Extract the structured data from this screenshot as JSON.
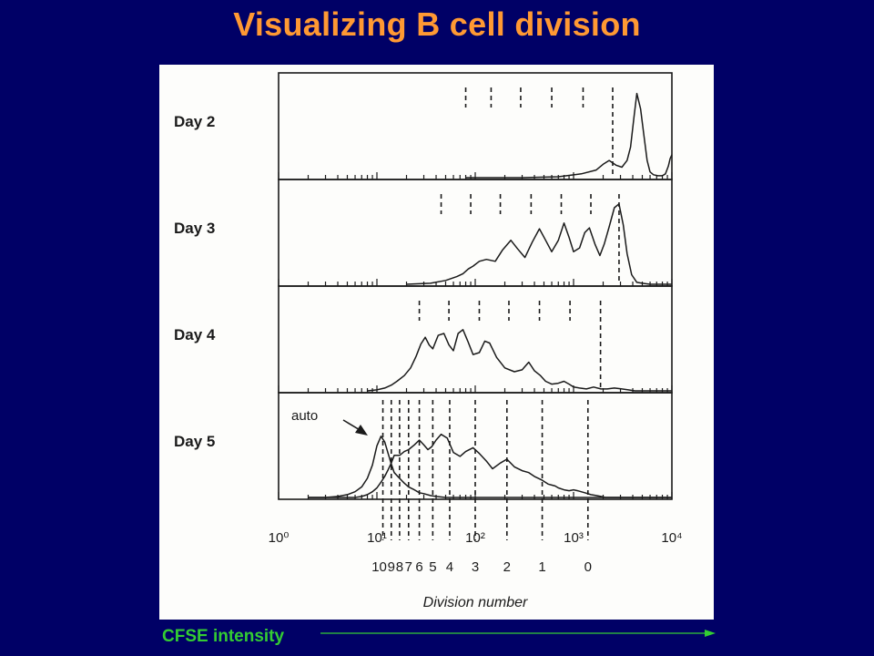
{
  "slide": {
    "title": "Visualizing B cell division",
    "axis_caption": "CFSE intensity",
    "colors": {
      "background": "#000066",
      "title": "#ff9933",
      "caption": "#33cc33",
      "arrow": "#33cc33"
    }
  },
  "chart_data": {
    "type": "line",
    "title": "",
    "xlabel": "Division number",
    "ylabel": "",
    "x_scale": "log",
    "xlim": [
      1,
      10000
    ],
    "x_ticks": [
      {
        "value": 1,
        "label": "10⁰"
      },
      {
        "value": 10,
        "label": "10¹"
      },
      {
        "value": 100,
        "label": "10²"
      },
      {
        "value": 1000,
        "label": "10³"
      },
      {
        "value": 10000,
        "label": "10⁴"
      }
    ],
    "division_labels": [
      "10",
      "9",
      "8",
      "7",
      "6",
      "5",
      "4",
      "3",
      "2",
      "1",
      "0"
    ],
    "division_positions": [
      11.5,
      14,
      17,
      21,
      27,
      37,
      55,
      100,
      210,
      480,
      1400
    ],
    "panels": [
      {
        "label": "Day 2",
        "division_markers": [
          80,
          145,
          290,
          600,
          1250,
          2500
        ],
        "series": [
          {
            "x": [
              80,
              300,
              700,
              1200,
              1700,
              2000,
              2300,
              2700,
              3100,
              3500,
              3800,
              4100,
              4400,
              4800,
              5200,
              5600,
              6000,
              6500,
              7200,
              8000,
              8600,
              9200,
              9600,
              10000
            ],
            "y": [
              0,
              0,
              0.01,
              0.04,
              0.08,
              0.14,
              0.18,
              0.13,
              0.11,
              0.18,
              0.32,
              0.62,
              0.88,
              0.72,
              0.44,
              0.18,
              0.06,
              0.03,
              0.02,
              0.02,
              0.04,
              0.12,
              0.2,
              0.24
            ]
          }
        ]
      },
      {
        "label": "Day 3",
        "division_markers": [
          45,
          90,
          180,
          370,
          750,
          1500,
          2900
        ],
        "series": [
          {
            "x": [
              20,
              35,
              50,
              65,
              75,
              85,
              95,
              110,
              130,
              160,
              190,
              230,
              270,
              320,
              380,
              450,
              520,
              600,
              700,
              800,
              900,
              1000,
              1150,
              1300,
              1450,
              1650,
              1850,
              2050,
              2300,
              2600,
              2900,
              3200,
              3500,
              3900,
              4400,
              5000,
              6000,
              8000,
              10000
            ],
            "y": [
              0,
              0.01,
              0.04,
              0.08,
              0.11,
              0.16,
              0.19,
              0.24,
              0.26,
              0.24,
              0.36,
              0.46,
              0.37,
              0.28,
              0.44,
              0.58,
              0.46,
              0.34,
              0.46,
              0.64,
              0.49,
              0.34,
              0.38,
              0.54,
              0.59,
              0.42,
              0.3,
              0.42,
              0.6,
              0.8,
              0.84,
              0.62,
              0.32,
              0.1,
              0.02,
              0.01,
              0,
              0,
              0
            ]
          }
        ]
      },
      {
        "label": "Day 4",
        "division_markers": [
          27,
          54,
          110,
          220,
          450,
          920,
          1880
        ],
        "series": [
          {
            "x": [
              8,
              10,
              12,
              14,
              16,
              19,
              22,
              25,
              28,
              31,
              34,
              37,
              42,
              48,
              54,
              60,
              67,
              75,
              84,
              95,
              110,
              125,
              140,
              165,
              200,
              250,
              300,
              350,
              400,
              460,
              520,
              600,
              700,
              800,
              900,
              1000,
              1150,
              1350,
              1600,
              1900,
              2200,
              2600,
              3100,
              3600,
              4200,
              5200,
              7000,
              10000
            ],
            "y": [
              0,
              0.01,
              0.03,
              0.06,
              0.1,
              0.16,
              0.24,
              0.36,
              0.49,
              0.56,
              0.48,
              0.44,
              0.58,
              0.6,
              0.48,
              0.42,
              0.6,
              0.64,
              0.52,
              0.38,
              0.4,
              0.52,
              0.5,
              0.35,
              0.24,
              0.2,
              0.22,
              0.3,
              0.21,
              0.16,
              0.1,
              0.07,
              0.08,
              0.1,
              0.07,
              0.04,
              0.03,
              0.02,
              0.04,
              0.02,
              0.02,
              0.03,
              0.02,
              0.01,
              0,
              0,
              0,
              0
            ]
          }
        ]
      },
      {
        "label": "Day 5",
        "division_markers": [
          11.5,
          14,
          17,
          21,
          27,
          37,
          55,
          100,
          210,
          480,
          1400
        ],
        "annotation": "auto",
        "series": [
          {
            "name": "",
            "x": [
              2,
              3,
              4,
              5,
              6,
              7,
              8,
              9,
              10,
              11,
              12,
              13,
              14,
              15,
              17,
              19,
              21,
              24,
              27,
              30,
              33,
              36,
              40,
              45,
              52,
              60,
              70,
              80,
              95,
              110,
              130,
              150,
              180,
              210,
              250,
              300,
              350,
              400,
              480,
              550,
              600,
              650,
              700,
              800,
              900,
              1000,
              1100,
              1300,
              1500,
              1700,
              1900,
              2100,
              2300,
              2600,
              3000,
              3500,
              4000,
              5000,
              7000,
              10000
            ],
            "y": [
              0,
              0,
              0,
              0,
              0,
              0.01,
              0.03,
              0.06,
              0.1,
              0.16,
              0.22,
              0.29,
              0.36,
              0.44,
              0.44,
              0.48,
              0.5,
              0.55,
              0.6,
              0.55,
              0.5,
              0.53,
              0.6,
              0.66,
              0.62,
              0.47,
              0.43,
              0.48,
              0.52,
              0.46,
              0.38,
              0.3,
              0.36,
              0.4,
              0.32,
              0.28,
              0.26,
              0.22,
              0.18,
              0.14,
              0.13,
              0.12,
              0.1,
              0.08,
              0.07,
              0.08,
              0.07,
              0.05,
              0.03,
              0.02,
              0.01,
              0,
              0,
              0,
              0,
              0,
              0,
              0,
              0,
              0
            ]
          },
          {
            "name": "auto",
            "x": [
              2,
              3,
              4,
              5,
              6,
              7,
              8,
              9,
              10,
              11,
              12,
              13,
              14,
              15,
              17,
              19,
              21,
              24,
              27,
              30,
              35,
              40,
              50,
              60,
              75,
              100,
              200,
              500,
              1000,
              5000,
              10000
            ],
            "y": [
              0,
              0,
              0.01,
              0.03,
              0.06,
              0.11,
              0.2,
              0.34,
              0.54,
              0.64,
              0.58,
              0.46,
              0.35,
              0.26,
              0.2,
              0.15,
              0.11,
              0.08,
              0.05,
              0.04,
              0.02,
              0.01,
              0,
              0,
              0,
              0,
              0,
              0,
              0,
              0,
              0
            ]
          }
        ]
      }
    ]
  }
}
